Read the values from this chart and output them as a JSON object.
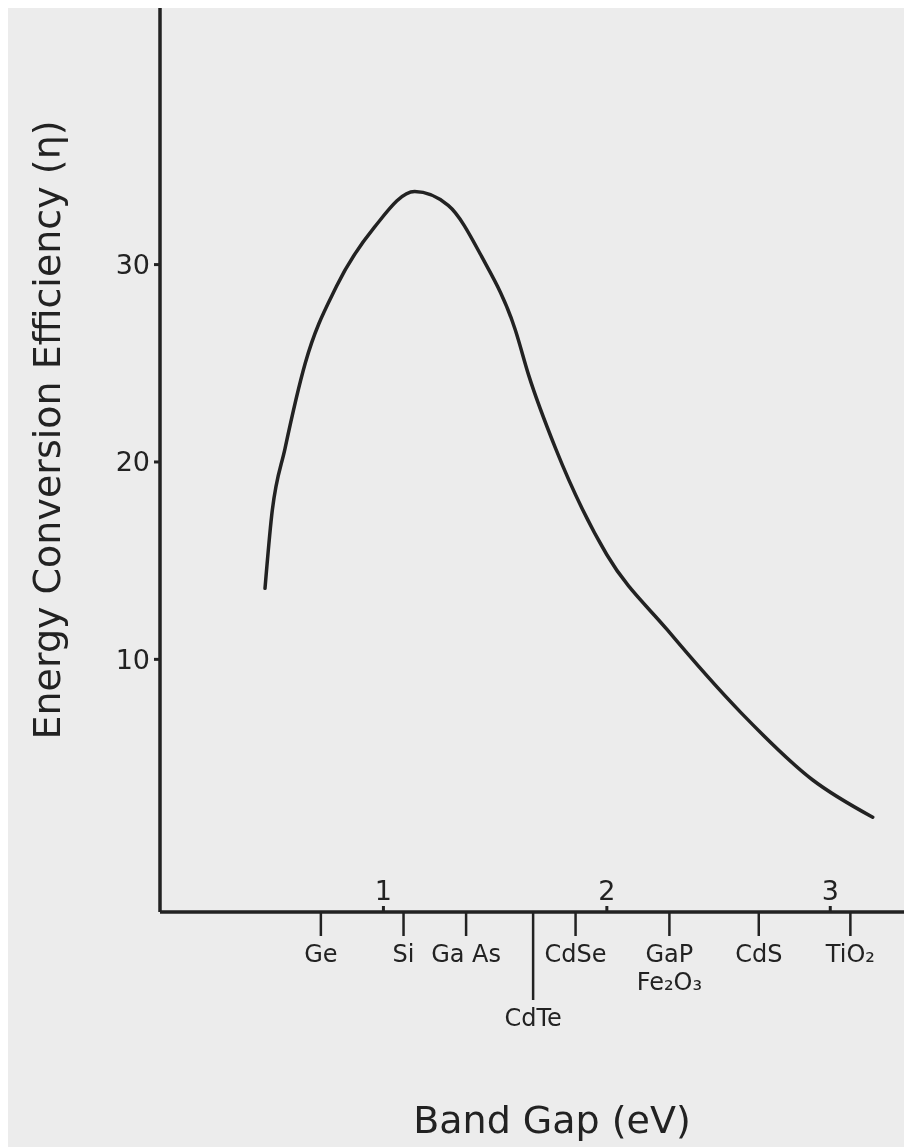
{
  "chart_data": {
    "type": "line",
    "xlabel": "Band Gap (eV)",
    "ylabel": "Energy Conversion Efficiency (η)",
    "x": [
      0.47,
      0.5,
      0.56,
      0.65,
      0.79,
      0.96,
      1.14,
      1.29,
      1.44,
      1.59,
      1.65,
      1.77,
      2.0,
      2.27,
      2.6,
      2.92,
      3.19
    ],
    "series": [
      {
        "color": "#222222",
        "values": [
          13.6,
          17.3,
          20.7,
          25.0,
          28.9,
          31.9,
          33.7,
          33.0,
          30.4,
          26.7,
          24.4,
          20.7,
          15.3,
          11.5,
          7.3,
          3.9,
          2.0
        ]
      }
    ],
    "xlim": [
      0,
      3.33
    ],
    "xticks": [
      1,
      2,
      3
    ],
    "ylim": [
      -2.8,
      43
    ],
    "yticks": [
      10,
      20,
      30
    ],
    "grid": false,
    "marker": "none",
    "line_style": "solid",
    "ref_lines": [
      {
        "axis": "x",
        "value": 0.72,
        "label": "Ge"
      },
      {
        "axis": "x",
        "value": 1.09,
        "label": "Si"
      },
      {
        "axis": "x",
        "value": 1.37,
        "label": "Ga As"
      },
      {
        "axis": "x",
        "value": 1.67,
        "label": "CdTe"
      },
      {
        "axis": "x",
        "value": 1.86,
        "label": "CdSe"
      },
      {
        "axis": "x",
        "value": 2.28,
        "label": "GaP\nFe₂O₃"
      },
      {
        "axis": "x",
        "value": 2.68,
        "label": "CdS"
      },
      {
        "axis": "x",
        "value": 3.09,
        "label": "TiO₂"
      }
    ]
  }
}
